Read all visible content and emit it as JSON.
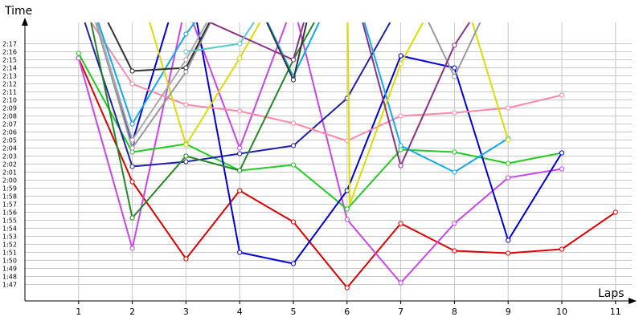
{
  "chart_data": {
    "type": "line",
    "ylabel": "Time",
    "xlabel": "Laps",
    "x_ticks": [
      1,
      2,
      3,
      4,
      5,
      6,
      7,
      8,
      9,
      10,
      11
    ],
    "y_tick_labels": [
      "2:17",
      "2:16",
      "2:15",
      "2:14",
      "2:13",
      "2:12",
      "2:11",
      "2:10",
      "2:09",
      "2:08",
      "2:07",
      "2:06",
      "2:05",
      "2:04",
      "2:03",
      "2:02",
      "2:01",
      "2:00",
      "1:59",
      "1:58",
      "1:57",
      "1:56",
      "1:55",
      "1:54",
      "1:53",
      "1:52",
      "1:51",
      "1:50",
      "1:49",
      "1:48",
      "1:47"
    ],
    "ylim_seconds": [
      101,
      139
    ],
    "xlim": [
      0,
      11
    ],
    "grid": true,
    "series": [
      {
        "color": "#e00000",
        "points": [
          [
            1,
            135.2
          ],
          [
            2,
            119.8
          ],
          [
            3,
            110.2
          ],
          [
            4,
            118.7
          ],
          [
            5,
            114.8
          ],
          [
            6,
            106.6
          ],
          [
            7,
            114.6
          ],
          [
            8,
            111.2
          ],
          [
            9,
            110.9
          ],
          [
            10,
            111.4
          ],
          [
            11,
            116.0
          ]
        ]
      },
      {
        "color": "#cc44ee",
        "points": [
          [
            1,
            135.2
          ],
          [
            2,
            111.5
          ],
          [
            3,
            142
          ],
          [
            4,
            124
          ],
          [
            5,
            142
          ],
          [
            6,
            115.1
          ],
          [
            7,
            107.2
          ],
          [
            8,
            114.6
          ],
          [
            9,
            120.3
          ],
          [
            10,
            121.4
          ]
        ]
      },
      {
        "color": "#22cc22",
        "points": [
          [
            1,
            135.8
          ],
          [
            2,
            123.5
          ],
          [
            3,
            124.5
          ],
          [
            4,
            121.2
          ],
          [
            5,
            121.9
          ],
          [
            6,
            116.4
          ],
          [
            7,
            123.8
          ],
          [
            8,
            123.5
          ],
          [
            9,
            122.1
          ],
          [
            10,
            123.4
          ]
        ]
      },
      {
        "color": "#2222aa",
        "points": [
          [
            1,
            142
          ],
          [
            2,
            121.7
          ],
          [
            3,
            122.3
          ],
          [
            4,
            123.3
          ],
          [
            5,
            124.3
          ],
          [
            6,
            130.2
          ],
          [
            7,
            142
          ]
        ]
      },
      {
        "color": "#0000dd",
        "points": [
          [
            1,
            147.2
          ],
          [
            2,
            124.7
          ],
          [
            3,
            147
          ],
          [
            4,
            111.0
          ],
          [
            5,
            109.6
          ],
          [
            6,
            118.7
          ],
          [
            7,
            135.5
          ],
          [
            8,
            134.0
          ],
          [
            9,
            112.5
          ],
          [
            10,
            123.4
          ]
        ]
      },
      {
        "color": "#ff88aa",
        "points": [
          [
            1,
            142
          ],
          [
            2,
            132.0
          ],
          [
            3,
            129.4
          ],
          [
            4,
            128.6
          ],
          [
            5,
            127.1
          ],
          [
            6,
            124.9
          ],
          [
            7,
            128.0
          ],
          [
            8,
            128.4
          ],
          [
            9,
            129.0
          ],
          [
            10,
            130.6
          ]
        ]
      },
      {
        "color": "#11aaee",
        "points": [
          [
            1,
            147
          ],
          [
            2,
            127.0
          ],
          [
            3,
            138.2
          ],
          [
            4,
            147
          ],
          [
            5,
            132.9
          ],
          [
            6,
            147
          ],
          [
            7,
            124.3
          ],
          [
            8,
            121.0
          ],
          [
            9,
            125.2
          ]
        ]
      },
      {
        "color": "#dddd00",
        "points": [
          [
            1,
            147
          ],
          [
            2,
            147
          ],
          [
            3,
            124.4
          ],
          [
            4,
            135.2
          ],
          [
            5,
            147
          ],
          [
            6,
            147
          ],
          [
            6.05,
            117
          ],
          [
            7,
            134.5
          ],
          [
            8,
            147
          ],
          [
            9,
            125.0
          ]
        ]
      },
      {
        "color": "#228822",
        "points": [
          [
            1,
            147
          ],
          [
            2,
            115.3
          ],
          [
            3,
            123.0
          ],
          [
            4,
            121.2
          ],
          [
            5,
            135
          ],
          [
            6,
            147
          ],
          [
            7,
            141.8
          ],
          [
            8,
            147
          ],
          [
            9,
            140.7
          ]
        ]
      },
      {
        "color": "#999999",
        "points": [
          [
            1,
            147
          ],
          [
            2,
            124.0
          ],
          [
            3,
            133.5
          ],
          [
            4,
            147
          ],
          [
            7,
            147
          ],
          [
            8,
            132.9
          ],
          [
            9,
            147
          ]
        ]
      },
      {
        "color": "#333333",
        "points": [
          [
            1,
            147
          ],
          [
            2,
            133.6
          ],
          [
            3,
            134.0
          ],
          [
            4,
            147
          ],
          [
            5,
            132.5
          ],
          [
            5.5,
            147
          ]
        ]
      },
      {
        "color": "#883388",
        "points": [
          [
            1,
            147
          ],
          [
            5,
            135.0
          ],
          [
            5.5,
            147
          ],
          [
            6,
            147
          ],
          [
            7,
            121.8
          ],
          [
            8,
            136.8
          ],
          [
            9,
            147
          ]
        ]
      },
      {
        "color": "#55cccc",
        "points": [
          [
            3,
            136.0
          ],
          [
            4,
            137.0
          ],
          [
            5,
            147
          ]
        ]
      },
      {
        "color": "#aaaaaa",
        "points": [
          [
            1,
            147
          ],
          [
            2,
            125.0
          ],
          [
            3,
            135.0
          ],
          [
            4,
            147
          ]
        ]
      }
    ]
  }
}
